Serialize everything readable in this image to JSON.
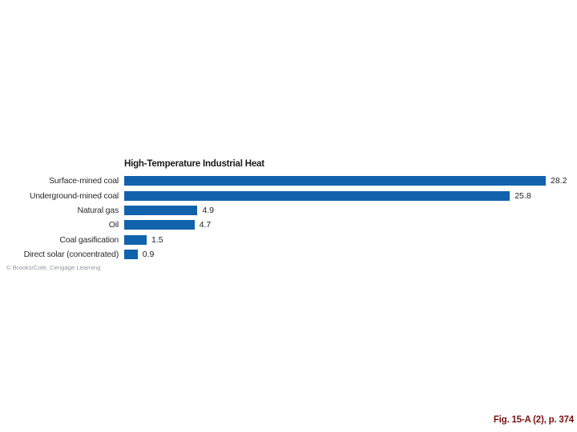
{
  "figure": {
    "caption": "Fig. 15-A (2), p. 374",
    "copyright": "© Brooks/Cole, Cengage Learning"
  },
  "chart_data": {
    "type": "bar",
    "orientation": "horizontal",
    "title": "High-Temperature Industrial Heat",
    "categories": [
      "Surface-mined coal",
      "Underground-mined coal",
      "Natural gas",
      "Oil",
      "Coal gasification",
      "Direct solar (concentrated)"
    ],
    "values": [
      28.2,
      25.8,
      4.9,
      4.7,
      1.5,
      0.9
    ],
    "value_labels": [
      "28.2",
      "25.8",
      "4.9",
      "4.7",
      "1.5",
      "0.9"
    ],
    "xlabel": "",
    "ylabel": "",
    "xlim": [
      0,
      28.2
    ],
    "grid": false,
    "legend": false,
    "bar_color": "#1162ac"
  },
  "colors": {
    "background": "#ffffff",
    "bar": "#1162ac",
    "title_text": "#1a1a1a",
    "label_text": "#2b2b2b",
    "copyright_text": "#8f939b",
    "caption_text": "#7b1010"
  }
}
